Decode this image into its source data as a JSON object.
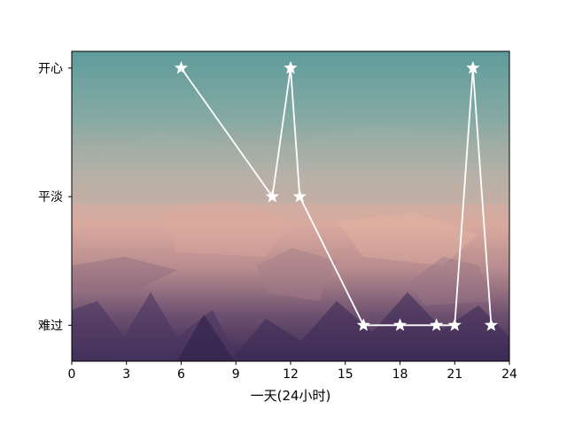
{
  "chart_data": {
    "type": "line",
    "title": "",
    "xlabel": "一天(24小时)",
    "ylabel": "",
    "xlim": [
      0,
      24
    ],
    "ylim": [
      -0.28,
      2.13
    ],
    "x_ticks": [
      0,
      3,
      6,
      9,
      12,
      15,
      18,
      21,
      24
    ],
    "y_ticks": [
      {
        "value": 0,
        "label": "难过"
      },
      {
        "value": 1,
        "label": "平淡"
      },
      {
        "value": 2,
        "label": "开心"
      }
    ],
    "grid": false,
    "background": "watercolor-style low-poly gradient image (teal top, pink middle, dark purple bottom)",
    "series": [
      {
        "marker": "star",
        "color": "#ffffff",
        "x": [
          6,
          11,
          12,
          12.5,
          16,
          18,
          20,
          21,
          22,
          23
        ],
        "y": [
          2,
          1,
          2,
          1,
          0,
          0,
          0,
          0,
          2,
          0
        ]
      }
    ]
  }
}
